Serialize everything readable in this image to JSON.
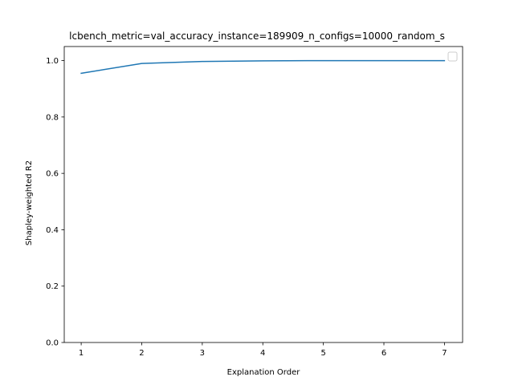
{
  "chart_data": {
    "type": "line",
    "title": "lcbench_metric=val_accuracy_instance=189909_n_configs=10000_random_s",
    "xlabel": "Explanation Order",
    "ylabel": "Shapley-weighted R2",
    "x": [
      1,
      2,
      3,
      4,
      5,
      6,
      7
    ],
    "series": [
      {
        "values": [
          0.955,
          0.99,
          0.997,
          0.999,
          1.0,
          1.0,
          1.0
        ],
        "color": "#1f77b4"
      }
    ],
    "xlim": [
      0.72,
      7.3
    ],
    "ylim": [
      0.0,
      1.05
    ],
    "xticks": [
      "1",
      "2",
      "3",
      "4",
      "5",
      "6",
      "7"
    ],
    "yticks": [
      "0.0",
      "0.2",
      "0.4",
      "0.6",
      "0.8",
      "1.0"
    ],
    "grid": false,
    "legend": {
      "placement": "top-right",
      "entries": []
    }
  }
}
